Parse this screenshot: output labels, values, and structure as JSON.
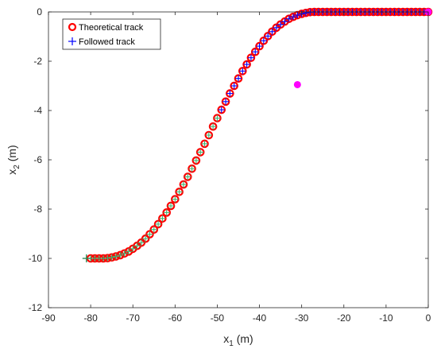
{
  "chart_data": {
    "type": "scatter",
    "title": "",
    "xlabel_main": "x",
    "xlabel_sub": "1",
    "xlabel_unit": " (m)",
    "ylabel_main": "x",
    "ylabel_sub": "2",
    "ylabel_unit": " (m)",
    "xlim": [
      -90,
      0
    ],
    "ylim": [
      -12,
      0
    ],
    "x_ticks": [
      -90,
      -80,
      -70,
      -60,
      -50,
      -40,
      -30,
      -20,
      -10,
      0
    ],
    "y_ticks": [
      0,
      -2,
      -4,
      -6,
      -8,
      -10,
      -12
    ],
    "x_tick_labels": [
      "-90",
      "-80",
      "-70",
      "-60",
      "-50",
      "-40",
      "-30",
      "-20",
      "-10",
      "0"
    ],
    "y_tick_labels": [
      "0",
      "-2",
      "-4",
      "-6",
      "-8",
      "-10",
      "-12"
    ],
    "grid": false,
    "legend_position": "top-left",
    "series": [
      {
        "name": "Theoretical track",
        "marker": "circle",
        "color": "#ff0000",
        "x": [
          -80,
          -79,
          -78,
          -77,
          -76,
          -75,
          -74,
          -73,
          -72,
          -71,
          -70,
          -69,
          -68,
          -67,
          -66,
          -65,
          -64,
          -63,
          -62,
          -61,
          -60,
          -59,
          -58,
          -57,
          -56,
          -55,
          -54,
          -53,
          -52,
          -51,
          -50,
          -49,
          -48,
          -47,
          -46,
          -45,
          -44,
          -43,
          -42,
          -41,
          -40,
          -39,
          -38,
          -37,
          -36,
          -35,
          -34,
          -33,
          -32,
          -31,
          -30,
          -29,
          -28,
          -27,
          -26,
          -25,
          -24,
          -23,
          -22,
          -21,
          -20,
          -19,
          -18,
          -17,
          -16,
          -15,
          -14,
          -13,
          -12,
          -11,
          -10,
          -9,
          -8,
          -7,
          -6,
          -5,
          -4,
          -3,
          -2,
          -1,
          0
        ],
        "y": [
          -10.0,
          -10.0,
          -10.0,
          -10.0,
          -9.99,
          -9.96,
          -9.92,
          -9.87,
          -9.8,
          -9.72,
          -9.61,
          -9.49,
          -9.36,
          -9.2,
          -9.02,
          -8.83,
          -8.61,
          -8.38,
          -8.14,
          -7.87,
          -7.6,
          -7.3,
          -7.0,
          -6.69,
          -6.36,
          -6.03,
          -5.69,
          -5.35,
          -5.0,
          -4.65,
          -4.31,
          -3.97,
          -3.64,
          -3.31,
          -3.0,
          -2.7,
          -2.4,
          -2.13,
          -1.86,
          -1.62,
          -1.39,
          -1.17,
          -0.98,
          -0.8,
          -0.64,
          -0.51,
          -0.39,
          -0.28,
          -0.2,
          -0.13,
          -0.08,
          -0.04,
          -0.01,
          0.0,
          0.0,
          0.0,
          0.0,
          0.0,
          0.0,
          0.0,
          0.0,
          0.0,
          0.0,
          0.0,
          0.0,
          0.0,
          0.0,
          0.0,
          0.0,
          0.0,
          0.0,
          0.0,
          0.0,
          0.0,
          0.0,
          0.0,
          0.0,
          0.0,
          0.0,
          0.0,
          0.0
        ]
      },
      {
        "name": "Followed track",
        "marker": "plus",
        "color": "#0000ff",
        "x": [
          -80,
          -79,
          -78,
          -77,
          -76,
          -75,
          -74,
          -73,
          -72,
          -71,
          -70,
          -69,
          -68,
          -67,
          -66,
          -65,
          -64,
          -63,
          -62,
          -61,
          -60,
          -59,
          -58,
          -57,
          -56,
          -55,
          -54,
          -53,
          -52,
          -51,
          -50,
          -49,
          -48,
          -47,
          -46,
          -45,
          -44,
          -43,
          -42,
          -41,
          -40,
          -39,
          -38,
          -37,
          -36,
          -35,
          -34,
          -33,
          -32,
          -31,
          -30,
          -29,
          -28,
          -27,
          -26,
          -25,
          -24,
          -23,
          -22,
          -21,
          -20,
          -19,
          -18,
          -17,
          -16,
          -15,
          -14,
          -13,
          -12,
          -11,
          -10,
          -9,
          -8,
          -7,
          -6,
          -5,
          -4,
          -3,
          -2,
          -1,
          0
        ],
        "y": [
          -10.0,
          -10.0,
          -10.0,
          -10.0,
          -9.99,
          -9.96,
          -9.92,
          -9.87,
          -9.8,
          -9.72,
          -9.61,
          -9.49,
          -9.36,
          -9.2,
          -9.02,
          -8.83,
          -8.61,
          -8.38,
          -8.14,
          -7.87,
          -7.6,
          -7.3,
          -7.0,
          -6.69,
          -6.36,
          -6.03,
          -5.69,
          -5.35,
          -5.0,
          -4.65,
          -4.31,
          -3.97,
          -3.64,
          -3.31,
          -3.0,
          -2.7,
          -2.4,
          -2.13,
          -1.86,
          -1.62,
          -1.39,
          -1.17,
          -0.98,
          -0.8,
          -0.64,
          -0.51,
          -0.39,
          -0.28,
          -0.2,
          -0.13,
          -0.08,
          -0.04,
          -0.01,
          0.0,
          0.0,
          0.0,
          0.0,
          0.0,
          0.0,
          0.0,
          0.0,
          0.0,
          0.0,
          0.0,
          0.0,
          0.0,
          0.0,
          0.0,
          0.0,
          0.0,
          0.0,
          0.0,
          0.0,
          0.0,
          0.0,
          0.0,
          0.0,
          0.0,
          0.0,
          0.0,
          0.0
        ]
      }
    ],
    "highlight_points": [
      {
        "x": -31,
        "y": -2.95,
        "color": "#ff00ff"
      },
      {
        "x": 0,
        "y": 0,
        "color": "#ff00ff"
      }
    ],
    "start_marker": {
      "x": -81,
      "y": -10,
      "color": "#2e8b57"
    },
    "segment_colors": {
      "start_segment": "#3cb371",
      "end_segment": "#0000cd"
    }
  }
}
